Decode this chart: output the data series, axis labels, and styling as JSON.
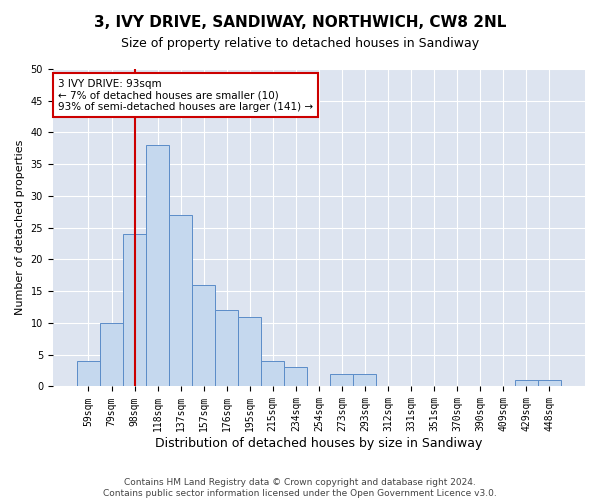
{
  "title": "3, IVY DRIVE, SANDIWAY, NORTHWICH, CW8 2NL",
  "subtitle": "Size of property relative to detached houses in Sandiway",
  "xlabel": "Distribution of detached houses by size in Sandiway",
  "ylabel": "Number of detached properties",
  "categories": [
    "59sqm",
    "79sqm",
    "98sqm",
    "118sqm",
    "137sqm",
    "157sqm",
    "176sqm",
    "195sqm",
    "215sqm",
    "234sqm",
    "254sqm",
    "273sqm",
    "293sqm",
    "312sqm",
    "331sqm",
    "351sqm",
    "370sqm",
    "390sqm",
    "409sqm",
    "429sqm",
    "448sqm"
  ],
  "values": [
    4,
    10,
    24,
    38,
    27,
    16,
    12,
    11,
    4,
    3,
    0,
    2,
    2,
    0,
    0,
    0,
    0,
    0,
    0,
    1,
    1
  ],
  "bar_color": "#c5d8ee",
  "bar_edge_color": "#5b8cc8",
  "vline_color": "#cc0000",
  "vline_x": 2.0,
  "annotation_text": "3 IVY DRIVE: 93sqm\n← 7% of detached houses are smaller (10)\n93% of semi-detached houses are larger (141) →",
  "annotation_box_facecolor": "#ffffff",
  "annotation_box_edgecolor": "#cc0000",
  "ylim": [
    0,
    50
  ],
  "yticks": [
    0,
    5,
    10,
    15,
    20,
    25,
    30,
    35,
    40,
    45,
    50
  ],
  "background_color": "#dde4f0",
  "footer_line1": "Contains HM Land Registry data © Crown copyright and database right 2024.",
  "footer_line2": "Contains public sector information licensed under the Open Government Licence v3.0.",
  "title_fontsize": 11,
  "subtitle_fontsize": 9,
  "ylabel_fontsize": 8,
  "xlabel_fontsize": 9,
  "tick_fontsize": 7,
  "annot_fontsize": 7.5,
  "footer_fontsize": 6.5
}
